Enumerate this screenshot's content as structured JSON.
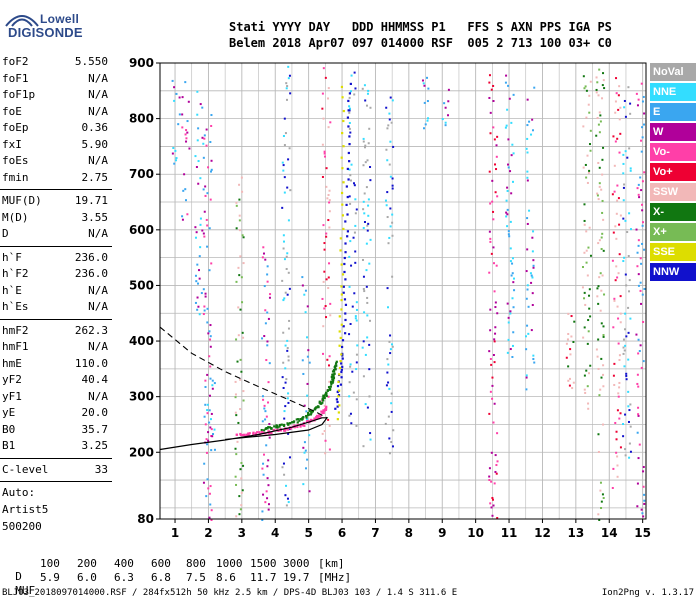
{
  "logo": {
    "line1": "Lowell",
    "line2": "DIGISONDE"
  },
  "header": {
    "line1": "Stati YYYY DAY   DDD HHMMSS P1   FFS S AXN PPS IGA PS",
    "line2": "Belem 2018 Apr07 097 014000 RSF  005 2 713 100 03+ C0"
  },
  "params": {
    "group1": [
      {
        "label": "foF2",
        "value": "5.550"
      },
      {
        "label": "foF1",
        "value": "N/A"
      },
      {
        "label": "foF1p",
        "value": "N/A"
      },
      {
        "label": "foE",
        "value": "N/A"
      },
      {
        "label": "foEp",
        "value": "0.36"
      },
      {
        "label": "fxI",
        "value": "5.90"
      },
      {
        "label": "foEs",
        "value": "N/A"
      },
      {
        "label": "fmin",
        "value": "2.75"
      }
    ],
    "group2": [
      {
        "label": "MUF(D)",
        "value": "19.71"
      },
      {
        "label": "M(D)",
        "value": "3.55"
      },
      {
        "label": "D",
        "value": "N/A"
      }
    ],
    "group3": [
      {
        "label": "h`F",
        "value": "236.0"
      },
      {
        "label": "h`F2",
        "value": "236.0"
      },
      {
        "label": "h`E",
        "value": "N/A"
      },
      {
        "label": "h`Es",
        "value": "N/A"
      }
    ],
    "group4": [
      {
        "label": "hmF2",
        "value": "262.3"
      },
      {
        "label": "hmF1",
        "value": "N/A"
      },
      {
        "label": "hmE",
        "value": "110.0"
      },
      {
        "label": "yF2",
        "value": "40.4"
      },
      {
        "label": "yF1",
        "value": "N/A"
      },
      {
        "label": "yE",
        "value": "20.0"
      },
      {
        "label": "B0",
        "value": "35.7"
      },
      {
        "label": "B1",
        "value": "3.25"
      }
    ],
    "group5": [
      {
        "label": "C-level",
        "value": "33"
      }
    ],
    "auto_label": "Auto:",
    "artist": "Artist5",
    "code": "500200"
  },
  "legend": [
    {
      "label": "NoVal",
      "color": "#a8a8a8"
    },
    {
      "label": "NNE",
      "color": "#33ddff"
    },
    {
      "label": "E",
      "color": "#3aa6f0"
    },
    {
      "label": "W",
      "color": "#b0009a"
    },
    {
      "label": "Vo-",
      "color": "#ff3fa8"
    },
    {
      "label": "Vo+",
      "color": "#ee0033"
    },
    {
      "label": "SSW",
      "color": "#f2b8b8"
    },
    {
      "label": "X-",
      "color": "#117711"
    },
    {
      "label": "X+",
      "color": "#77bb55"
    },
    {
      "label": "SSE",
      "color": "#dddd00"
    },
    {
      "label": "NNW",
      "color": "#1111cc"
    }
  ],
  "dmuf": {
    "d_label": "D",
    "d_values": [
      "100",
      "200",
      "400",
      "600",
      "800",
      "1000",
      "1500",
      "3000"
    ],
    "d_unit": "[km]",
    "muf_label": "MUF",
    "muf_values": [
      "5.9",
      "6.0",
      "6.3",
      "6.8",
      "7.5",
      "8.6",
      "11.7",
      "19.7"
    ],
    "muf_unit": "[MHz]"
  },
  "footer": {
    "left": "BLJ03_2018097014000.RSF / 284fx512h 50 kHz 2.5 km / DPS-4D BLJ03 103 / 1.4 S 311.6 E",
    "right": "Ion2Png v. 1.3.17"
  },
  "chart_data": {
    "type": "scatter",
    "title": "",
    "xlabel": "",
    "ylabel": "",
    "xlim": [
      0.55,
      15.1
    ],
    "ylim": [
      80,
      900
    ],
    "x_ticks": [
      1,
      2,
      3,
      4,
      5,
      6,
      7,
      8,
      9,
      10,
      11,
      12,
      13,
      14,
      15
    ],
    "y_ticks": [
      80,
      200,
      300,
      400,
      500,
      600,
      700,
      800,
      900
    ],
    "grid": true,
    "echo_traces": [
      {
        "name": "X-",
        "color": "#117711",
        "x": [
          3.6,
          4.2,
          4.8,
          5.2,
          5.5,
          5.7,
          5.8
        ],
        "y": [
          243,
          250,
          262,
          282,
          305,
          335,
          365
        ]
      },
      {
        "name": "Vo-",
        "color": "#ff3fa8",
        "x": [
          2.8,
          3.5,
          4.2,
          4.8,
          5.3,
          5.5
        ],
        "y": [
          232,
          236,
          242,
          252,
          268,
          282
        ]
      },
      {
        "name": "NNW",
        "color": "#1111cc",
        "x": [
          5.8,
          6.0,
          6.1,
          6.2
        ],
        "y": [
          280,
          380,
          600,
          880
        ]
      },
      {
        "name": "SSE",
        "color": "#dddd00",
        "x": [
          5.85,
          5.95,
          6.0
        ],
        "y": [
          260,
          500,
          880
        ]
      }
    ],
    "profile_solid": {
      "x": [
        0.55,
        1.5,
        2.5,
        3.5,
        4.5,
        5.0,
        5.4,
        5.55,
        5.4,
        5.0,
        4.0,
        3.0,
        2.5
      ],
      "y": [
        205,
        214,
        222,
        232,
        245,
        254,
        262,
        262,
        250,
        240,
        232,
        226,
        223
      ]
    },
    "profile_dashed": {
      "x": [
        0.55,
        1.5,
        2.5,
        3.5,
        4.5,
        5.2,
        5.55
      ],
      "y": [
        425,
        378,
        345,
        318,
        292,
        273,
        262
      ]
    }
  }
}
